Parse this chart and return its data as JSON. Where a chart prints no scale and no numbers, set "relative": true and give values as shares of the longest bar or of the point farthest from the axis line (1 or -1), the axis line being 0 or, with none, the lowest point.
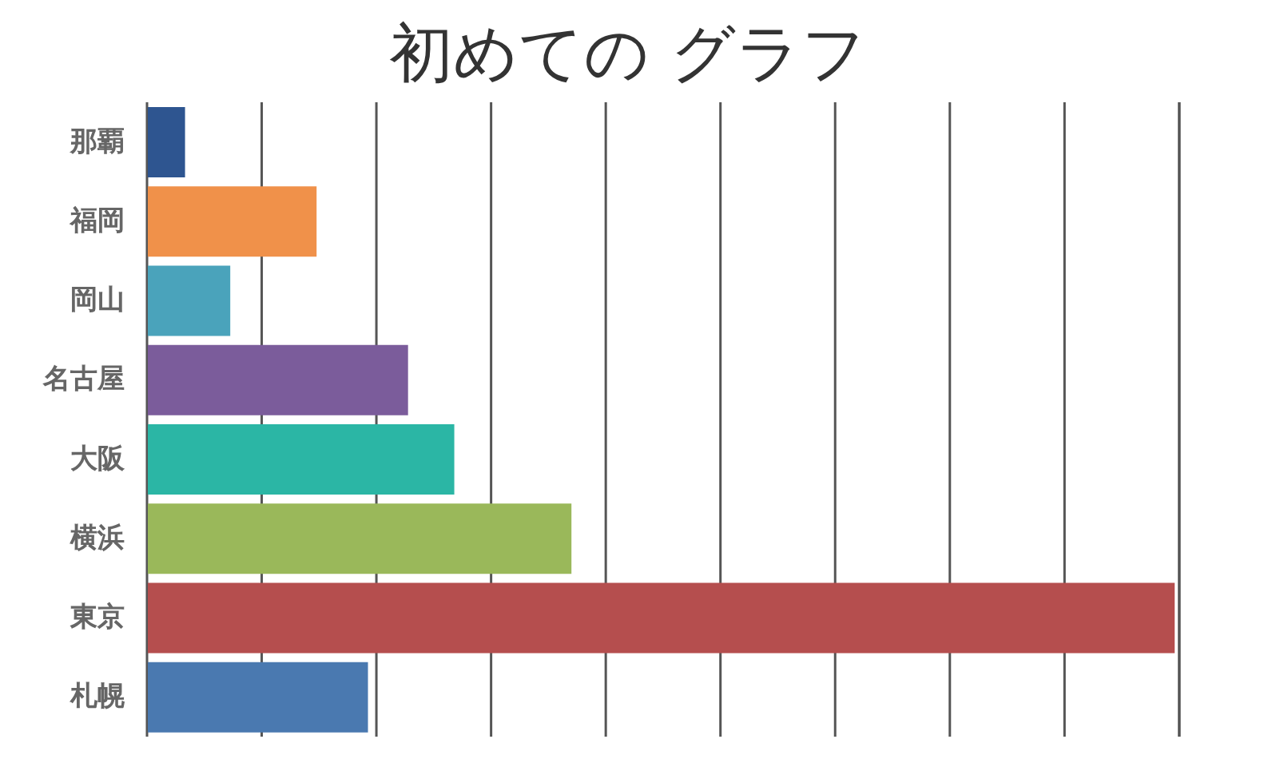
{
  "chart_data": {
    "type": "bar",
    "title": "初めての グラフ",
    "orientation": "horizontal",
    "relative": true,
    "grid": "x",
    "categories": [
      "那覇",
      "福岡",
      "岡山",
      "名古屋",
      "大阪",
      "横浜",
      "東京",
      "札幌"
    ],
    "values": [
      0.037,
      0.165,
      0.081,
      0.254,
      0.299,
      0.413,
      1,
      0.215
    ],
    "colors": [
      "#2e5590",
      "#f0914a",
      "#4aa3bb",
      "#7b5c9b",
      "#2bb6a5",
      "#9ab85a",
      "#b54e4e",
      "#4a79b0"
    ]
  }
}
